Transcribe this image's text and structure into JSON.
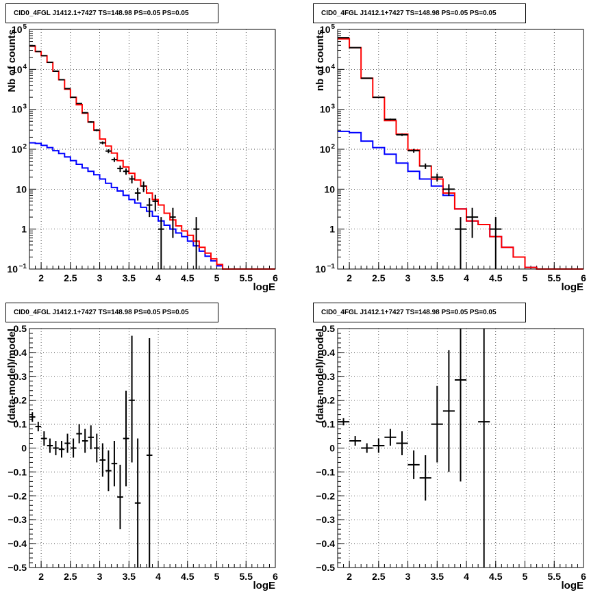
{
  "chart_data": [
    {
      "type": "step-histogram",
      "title": "CID0_4FGL J1412.1+7427 TS=148.98 PS=0.05 PS=0.05",
      "xlabel": "logE",
      "ylabel": "Nb of counts",
      "xlim": [
        1.8,
        6.0
      ],
      "ylim": [
        0.1,
        100000
      ],
      "yscale": "log",
      "grid": true,
      "x_ticks": [
        "2",
        "2.5",
        "3",
        "3.5",
        "4",
        "4.5",
        "5",
        "5.5",
        "6"
      ],
      "y_ticks": [
        {
          "base": "10",
          "exp": "−1"
        },
        {
          "base": "1",
          "exp": ""
        },
        {
          "base": "10",
          "exp": ""
        },
        {
          "base": "10",
          "exp": "2"
        },
        {
          "base": "10",
          "exp": "3"
        },
        {
          "base": "10",
          "exp": "4"
        },
        {
          "base": "10",
          "exp": "5"
        }
      ],
      "bin_edges": [
        1.8,
        1.9,
        2.0,
        2.1,
        2.2,
        2.3,
        2.4,
        2.5,
        2.6,
        2.7,
        2.8,
        2.9,
        3.0,
        3.1,
        3.2,
        3.3,
        3.4,
        3.5,
        3.6,
        3.7,
        3.8,
        3.9,
        4.0,
        4.1,
        4.2,
        4.3,
        4.4,
        4.5,
        4.6,
        4.7,
        4.8,
        4.9,
        5.0,
        5.1,
        5.2,
        5.3,
        5.4,
        5.5,
        5.6,
        5.7,
        5.8,
        5.9,
        6.0
      ],
      "series": [
        {
          "name": "",
          "color": "#ff0000",
          "values": [
            38000,
            28000,
            22000,
            15000,
            9000,
            5500,
            3200,
            2000,
            1300,
            800,
            480,
            300,
            180,
            120,
            80,
            52,
            36,
            25,
            17,
            12,
            8,
            5.5,
            4.0,
            2.5,
            1.7,
            1.2,
            0.9,
            0.7,
            0.5,
            0.35,
            0.25,
            0.18,
            0.13,
            0.1,
            0.1,
            0.1,
            0.1,
            0.1,
            0.1,
            0.1,
            0.1,
            0.1
          ]
        },
        {
          "name": "",
          "color": "#0000ff",
          "values": [
            145,
            140,
            125,
            110,
            92,
            78,
            64,
            52,
            42,
            34,
            28,
            23,
            18,
            14,
            11,
            9,
            7,
            5.5,
            4.5,
            3.5,
            2.8,
            2.1,
            1.6,
            1.25,
            1.0,
            0.8,
            0.65,
            0.5,
            0.38,
            0.28,
            0.21,
            0.16,
            0.12,
            0.1,
            0.1,
            0.1,
            0.1,
            0.1,
            0.1,
            0.1,
            0.1,
            0.1
          ]
        }
      ],
      "data_points": [
        {
          "x": 1.85,
          "y": 39000,
          "xerr": 0.05,
          "ylo": 38800,
          "yhi": 39200
        },
        {
          "x": 1.95,
          "y": 28000,
          "xerr": 0.05,
          "ylo": 27800,
          "yhi": 28200
        },
        {
          "x": 2.05,
          "y": 22000,
          "xerr": 0.05,
          "ylo": 21800,
          "yhi": 22200
        },
        {
          "x": 2.15,
          "y": 15000,
          "xerr": 0.05,
          "ylo": 14850,
          "yhi": 15150
        },
        {
          "x": 2.25,
          "y": 9000,
          "xerr": 0.05,
          "ylo": 8900,
          "yhi": 9100
        },
        {
          "x": 2.35,
          "y": 5500,
          "xerr": 0.05,
          "ylo": 5420,
          "yhi": 5580
        },
        {
          "x": 2.45,
          "y": 3300,
          "xerr": 0.05,
          "ylo": 3240,
          "yhi": 3360
        },
        {
          "x": 2.55,
          "y": 2000,
          "xerr": 0.05,
          "ylo": 1955,
          "yhi": 2045
        },
        {
          "x": 2.65,
          "y": 1400,
          "xerr": 0.05,
          "ylo": 1360,
          "yhi": 1440
        },
        {
          "x": 2.75,
          "y": 820,
          "xerr": 0.05,
          "ylo": 790,
          "yhi": 850
        },
        {
          "x": 2.85,
          "y": 480,
          "xerr": 0.05,
          "ylo": 458,
          "yhi": 502
        },
        {
          "x": 2.95,
          "y": 300,
          "xerr": 0.05,
          "ylo": 283,
          "yhi": 317
        },
        {
          "x": 3.05,
          "y": 145,
          "xerr": 0.05,
          "ylo": 133,
          "yhi": 157
        },
        {
          "x": 3.15,
          "y": 90,
          "xerr": 0.05,
          "ylo": 80,
          "yhi": 100
        },
        {
          "x": 3.25,
          "y": 55,
          "xerr": 0.05,
          "ylo": 48,
          "yhi": 62
        },
        {
          "x": 3.35,
          "y": 33,
          "xerr": 0.05,
          "ylo": 27,
          "yhi": 39
        },
        {
          "x": 3.45,
          "y": 28,
          "xerr": 0.05,
          "ylo": 23,
          "yhi": 33
        },
        {
          "x": 3.55,
          "y": 18,
          "xerr": 0.05,
          "ylo": 14,
          "yhi": 22
        },
        {
          "x": 3.65,
          "y": 8,
          "xerr": 0.05,
          "ylo": 5.2,
          "yhi": 10.8
        },
        {
          "x": 3.75,
          "y": 12,
          "xerr": 0.05,
          "ylo": 8.5,
          "yhi": 15.5
        },
        {
          "x": 3.85,
          "y": 4,
          "xerr": 0.05,
          "ylo": 2,
          "yhi": 6
        },
        {
          "x": 3.95,
          "y": 5,
          "xerr": 0.05,
          "ylo": 2.8,
          "yhi": 7.2
        },
        {
          "x": 4.05,
          "y": 1,
          "xerr": 0.05,
          "ylo": 0.1,
          "yhi": 2
        },
        {
          "x": 4.25,
          "y": 2,
          "xerr": 0.05,
          "ylo": 0.6,
          "yhi": 3.4
        },
        {
          "x": 4.65,
          "y": 1,
          "xerr": 0.05,
          "ylo": 0.1,
          "yhi": 2
        }
      ]
    },
    {
      "type": "step-histogram",
      "title": "CID0_4FGL J1412.1+7427 TS=148.98 PS=0.05 PS=0.05",
      "xlabel": "logE",
      "ylabel": "nb of counts",
      "xlim": [
        1.8,
        6.0
      ],
      "ylim": [
        0.1,
        100000
      ],
      "yscale": "log",
      "grid": true,
      "x_ticks": [
        "2",
        "2.5",
        "3",
        "3.5",
        "4",
        "4.5",
        "5",
        "5.5",
        "6"
      ],
      "y_ticks": [
        {
          "base": "10",
          "exp": "−1"
        },
        {
          "base": "1",
          "exp": ""
        },
        {
          "base": "10",
          "exp": ""
        },
        {
          "base": "10",
          "exp": "2"
        },
        {
          "base": "10",
          "exp": "3"
        },
        {
          "base": "10",
          "exp": "4"
        },
        {
          "base": "10",
          "exp": "5"
        }
      ],
      "bin_edges": [
        1.8,
        2.0,
        2.2,
        2.4,
        2.6,
        2.8,
        3.0,
        3.2,
        3.4,
        3.6,
        3.8,
        4.0,
        4.2,
        4.4,
        4.6,
        4.8,
        5.0,
        5.2,
        5.4,
        5.6,
        5.8,
        6.0
      ],
      "series": [
        {
          "name": "",
          "color": "#ff0000",
          "values": [
            58000,
            35000,
            6000,
            2000,
            520,
            240,
            95,
            38,
            18,
            8,
            3.2,
            1.6,
            1.3,
            0.65,
            0.35,
            0.2,
            0.11,
            0.1,
            0.1,
            0.1,
            0.1
          ]
        },
        {
          "name": "",
          "color": "#0000ff",
          "values": [
            280,
            260,
            160,
            110,
            75,
            45,
            28,
            18,
            12,
            7,
            3.2,
            1.6,
            1.3,
            0.65,
            0.35,
            0.2,
            0.11,
            0.1,
            0.1,
            0.1,
            0.1
          ]
        }
      ],
      "data_points": [
        {
          "x": 1.9,
          "y": 62000,
          "xerr": 0.1,
          "ylo": 61700,
          "yhi": 62300
        },
        {
          "x": 2.1,
          "y": 35000,
          "xerr": 0.1,
          "ylo": 34800,
          "yhi": 35200
        },
        {
          "x": 2.3,
          "y": 6000,
          "xerr": 0.1,
          "ylo": 5900,
          "yhi": 6100
        },
        {
          "x": 2.5,
          "y": 2000,
          "xerr": 0.1,
          "ylo": 1950,
          "yhi": 2050
        },
        {
          "x": 2.7,
          "y": 560,
          "xerr": 0.1,
          "ylo": 535,
          "yhi": 585
        },
        {
          "x": 2.9,
          "y": 230,
          "xerr": 0.1,
          "ylo": 215,
          "yhi": 245
        },
        {
          "x": 3.1,
          "y": 92,
          "xerr": 0.1,
          "ylo": 82,
          "yhi": 102
        },
        {
          "x": 3.3,
          "y": 38,
          "xerr": 0.1,
          "ylo": 32,
          "yhi": 44
        },
        {
          "x": 3.5,
          "y": 20,
          "xerr": 0.1,
          "ylo": 15.5,
          "yhi": 24.5
        },
        {
          "x": 3.7,
          "y": 10,
          "xerr": 0.1,
          "ylo": 6.8,
          "yhi": 13.2
        },
        {
          "x": 3.9,
          "y": 1,
          "xerr": 0.1,
          "ylo": 0.1,
          "yhi": 2
        },
        {
          "x": 4.1,
          "y": 2,
          "xerr": 0.1,
          "ylo": 0.6,
          "yhi": 3.4
        },
        {
          "x": 4.5,
          "y": 1,
          "xerr": 0.1,
          "ylo": 0.1,
          "yhi": 2
        }
      ]
    },
    {
      "type": "scatter-errorbars",
      "title": "CID0_4FGL J1412.1+7427 TS=148.98 PS=0.05 PS=0.05",
      "xlabel": "logE",
      "ylabel": "(data-model)/model",
      "xlim": [
        1.8,
        6.0
      ],
      "ylim": [
        -0.5,
        0.5
      ],
      "yscale": "linear",
      "grid": true,
      "x_ticks": [
        "2",
        "2.5",
        "3",
        "3.5",
        "4",
        "4.5",
        "5",
        "5.5",
        "6"
      ],
      "y_ticks": [
        "−0.5",
        "−0.4",
        "−0.3",
        "−0.2",
        "−0.1",
        "0",
        "0.1",
        "0.2",
        "0.3",
        "0.4",
        "0.5"
      ],
      "data_points": [
        {
          "x": 1.85,
          "y": 0.13,
          "xerr": 0.05,
          "ylo": 0.11,
          "yhi": 0.15
        },
        {
          "x": 1.95,
          "y": 0.09,
          "xerr": 0.05,
          "ylo": 0.07,
          "yhi": 0.11
        },
        {
          "x": 2.05,
          "y": 0.04,
          "xerr": 0.05,
          "ylo": 0.01,
          "yhi": 0.07
        },
        {
          "x": 2.15,
          "y": 0.01,
          "xerr": 0.05,
          "ylo": -0.02,
          "yhi": 0.04
        },
        {
          "x": 2.25,
          "y": 0.0,
          "xerr": 0.05,
          "ylo": -0.03,
          "yhi": 0.03
        },
        {
          "x": 2.35,
          "y": -0.005,
          "xerr": 0.05,
          "ylo": -0.04,
          "yhi": 0.03
        },
        {
          "x": 2.45,
          "y": 0.02,
          "xerr": 0.05,
          "ylo": -0.02,
          "yhi": 0.06
        },
        {
          "x": 2.55,
          "y": 0.0,
          "xerr": 0.05,
          "ylo": -0.04,
          "yhi": 0.04
        },
        {
          "x": 2.65,
          "y": 0.06,
          "xerr": 0.05,
          "ylo": 0.02,
          "yhi": 0.1
        },
        {
          "x": 2.75,
          "y": 0.03,
          "xerr": 0.05,
          "ylo": -0.02,
          "yhi": 0.08
        },
        {
          "x": 2.85,
          "y": 0.045,
          "xerr": 0.05,
          "ylo": -0.005,
          "yhi": 0.095
        },
        {
          "x": 2.95,
          "y": 0.0,
          "xerr": 0.05,
          "ylo": -0.06,
          "yhi": 0.06
        },
        {
          "x": 3.05,
          "y": -0.05,
          "xerr": 0.05,
          "ylo": -0.12,
          "yhi": 0.02
        },
        {
          "x": 3.15,
          "y": -0.095,
          "xerr": 0.05,
          "ylo": -0.18,
          "yhi": -0.01
        },
        {
          "x": 3.25,
          "y": -0.065,
          "xerr": 0.05,
          "ylo": -0.16,
          "yhi": 0.03
        },
        {
          "x": 3.35,
          "y": -0.205,
          "xerr": 0.05,
          "ylo": -0.34,
          "yhi": -0.07
        },
        {
          "x": 3.45,
          "y": 0.04,
          "xerr": 0.05,
          "ylo": -0.16,
          "yhi": 0.24
        },
        {
          "x": 3.55,
          "y": 0.2,
          "xerr": 0.05,
          "ylo": -0.06,
          "yhi": 0.47
        },
        {
          "x": 3.65,
          "y": -0.23,
          "xerr": 0.05,
          "ylo": -0.5,
          "yhi": 0.04
        },
        {
          "x": 3.85,
          "y": -0.03,
          "xerr": 0.05,
          "ylo": -0.5,
          "yhi": 0.46
        }
      ]
    },
    {
      "type": "scatter-errorbars",
      "title": "CID0_4FGL J1412.1+7427 TS=148.98 PS=0.05 PS=0.05",
      "xlabel": "logE",
      "ylabel": "(data-model)/model",
      "xlim": [
        1.8,
        6.0
      ],
      "ylim": [
        -0.5,
        0.5
      ],
      "yscale": "linear",
      "grid": true,
      "x_ticks": [
        "2",
        "2.5",
        "3",
        "3.5",
        "4",
        "4.5",
        "5",
        "5.5",
        "6"
      ],
      "y_ticks": [
        "−0.5",
        "−0.4",
        "−0.3",
        "−0.2",
        "−0.1",
        "0",
        "0.1",
        "0.2",
        "0.3",
        "0.4",
        "0.5"
      ],
      "data_points": [
        {
          "x": 1.9,
          "y": 0.11,
          "xerr": 0.1,
          "ylo": 0.095,
          "yhi": 0.125
        },
        {
          "x": 2.1,
          "y": 0.03,
          "xerr": 0.1,
          "ylo": 0.01,
          "yhi": 0.05
        },
        {
          "x": 2.3,
          "y": 0.0,
          "xerr": 0.1,
          "ylo": -0.02,
          "yhi": 0.02
        },
        {
          "x": 2.5,
          "y": 0.01,
          "xerr": 0.1,
          "ylo": -0.02,
          "yhi": 0.04
        },
        {
          "x": 2.7,
          "y": 0.045,
          "xerr": 0.1,
          "ylo": 0.01,
          "yhi": 0.08
        },
        {
          "x": 2.9,
          "y": 0.02,
          "xerr": 0.1,
          "ylo": -0.03,
          "yhi": 0.07
        },
        {
          "x": 3.1,
          "y": -0.07,
          "xerr": 0.1,
          "ylo": -0.13,
          "yhi": -0.01
        },
        {
          "x": 3.3,
          "y": -0.125,
          "xerr": 0.1,
          "ylo": -0.22,
          "yhi": -0.03
        },
        {
          "x": 3.5,
          "y": 0.1,
          "xerr": 0.1,
          "ylo": -0.06,
          "yhi": 0.26
        },
        {
          "x": 3.7,
          "y": 0.155,
          "xerr": 0.1,
          "ylo": -0.1,
          "yhi": 0.41
        },
        {
          "x": 3.9,
          "y": 0.285,
          "xerr": 0.1,
          "ylo": -0.14,
          "yhi": 0.5
        },
        {
          "x": 4.3,
          "y": 0.11,
          "xerr": 0.1,
          "ylo": -0.5,
          "yhi": 0.5
        }
      ]
    }
  ]
}
